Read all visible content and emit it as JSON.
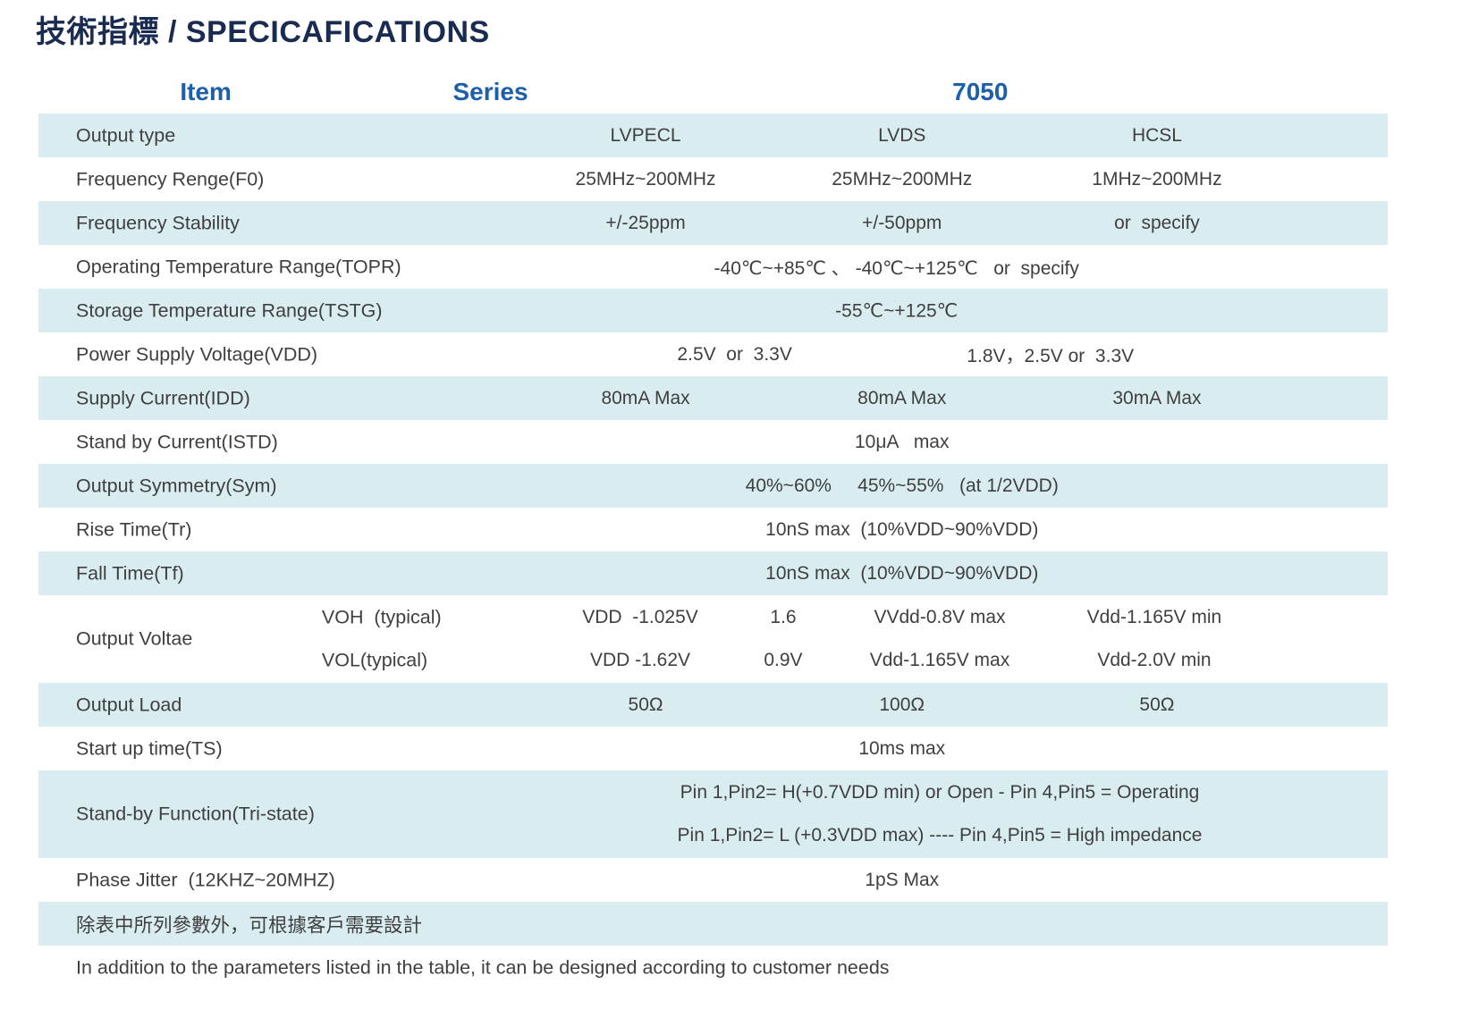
{
  "title": "技術指標 / SPECICAFICATIONS",
  "header": {
    "item": "Item",
    "series": "Series",
    "model": "7050"
  },
  "colors": {
    "title_navy": "#1a2b52",
    "header_blue": "#1d5fa9",
    "row_highlight": "#d9edf1",
    "body_text": "#3f3f3f"
  },
  "table": {
    "rows": [
      {
        "label": "Output type",
        "values": [
          "LVPECL",
          "LVDS",
          "HCSL"
        ]
      },
      {
        "label": "Frequency Renge(F0)",
        "values": [
          "25MHz~200MHz",
          "25MHz~200MHz",
          "1MHz~200MHz"
        ]
      },
      {
        "label": "Frequency Stability",
        "values": [
          "+/-25ppm",
          "+/-50ppm",
          "or  specify"
        ]
      },
      {
        "label": "Operating Temperature Range(TOPR)",
        "values": [
          "-40℃~+85℃ 、 -40℃~+125℃   or  specify"
        ]
      },
      {
        "label": "Storage Temperature Range(TSTG)",
        "values": [
          "-55℃~+125℃"
        ]
      },
      {
        "label": "Power Supply Voltage(VDD)",
        "values": [
          "2.5V  or  3.3V",
          "1.8V，2.5V or  3.3V"
        ]
      },
      {
        "label": "Supply Current(IDD)",
        "values": [
          "80mA Max",
          "80mA Max",
          "30mA Max"
        ]
      },
      {
        "label": "Stand by Current(ISTD)",
        "values": [
          "10μA   max"
        ]
      },
      {
        "label": "Output Symmetry(Sym)",
        "values": [
          "40%~60%     45%~55%   (at 1/2VDD)"
        ]
      },
      {
        "label": "Rise Time(Tr)",
        "values": [
          "10nS max  (10%VDD~90%VDD)"
        ]
      },
      {
        "label": "Fall Time(Tf)",
        "values": [
          "10nS max  (10%VDD~90%VDD)"
        ]
      },
      {
        "label": "Output Voltae",
        "sublabels": [
          "VOH  (typical)",
          "VOL(typical)"
        ],
        "voh": [
          "VDD  -1.025V",
          "1.6",
          "VVdd-0.8V max",
          "Vdd-1.165V min"
        ],
        "vol": [
          "VDD -1.62V",
          "0.9V",
          "Vdd-1.165V max",
          "Vdd-2.0V min"
        ]
      },
      {
        "label": "Output Load",
        "values": [
          "50Ω",
          "100Ω",
          "50Ω"
        ]
      },
      {
        "label": "Start up time(TS)",
        "values": [
          "10ms max"
        ]
      },
      {
        "label": "Stand-by Function(Tri-state)",
        "lines": [
          "Pin 1,Pin2= H(+0.7VDD min) or Open - Pin 4,Pin5 = Operating",
          "Pin 1,Pin2= L (+0.3VDD max) ---- Pin 4,Pin5 = High impedance"
        ]
      },
      {
        "label": "Phase Jitter  (12KHZ~20MHZ)",
        "values": [
          "1pS Max"
        ]
      },
      {
        "label": "除表中所列參數外，可根據客戶需要設計"
      },
      {
        "label": "In addition to the parameters listed in the table, it can be designed according to customer needs"
      }
    ]
  }
}
